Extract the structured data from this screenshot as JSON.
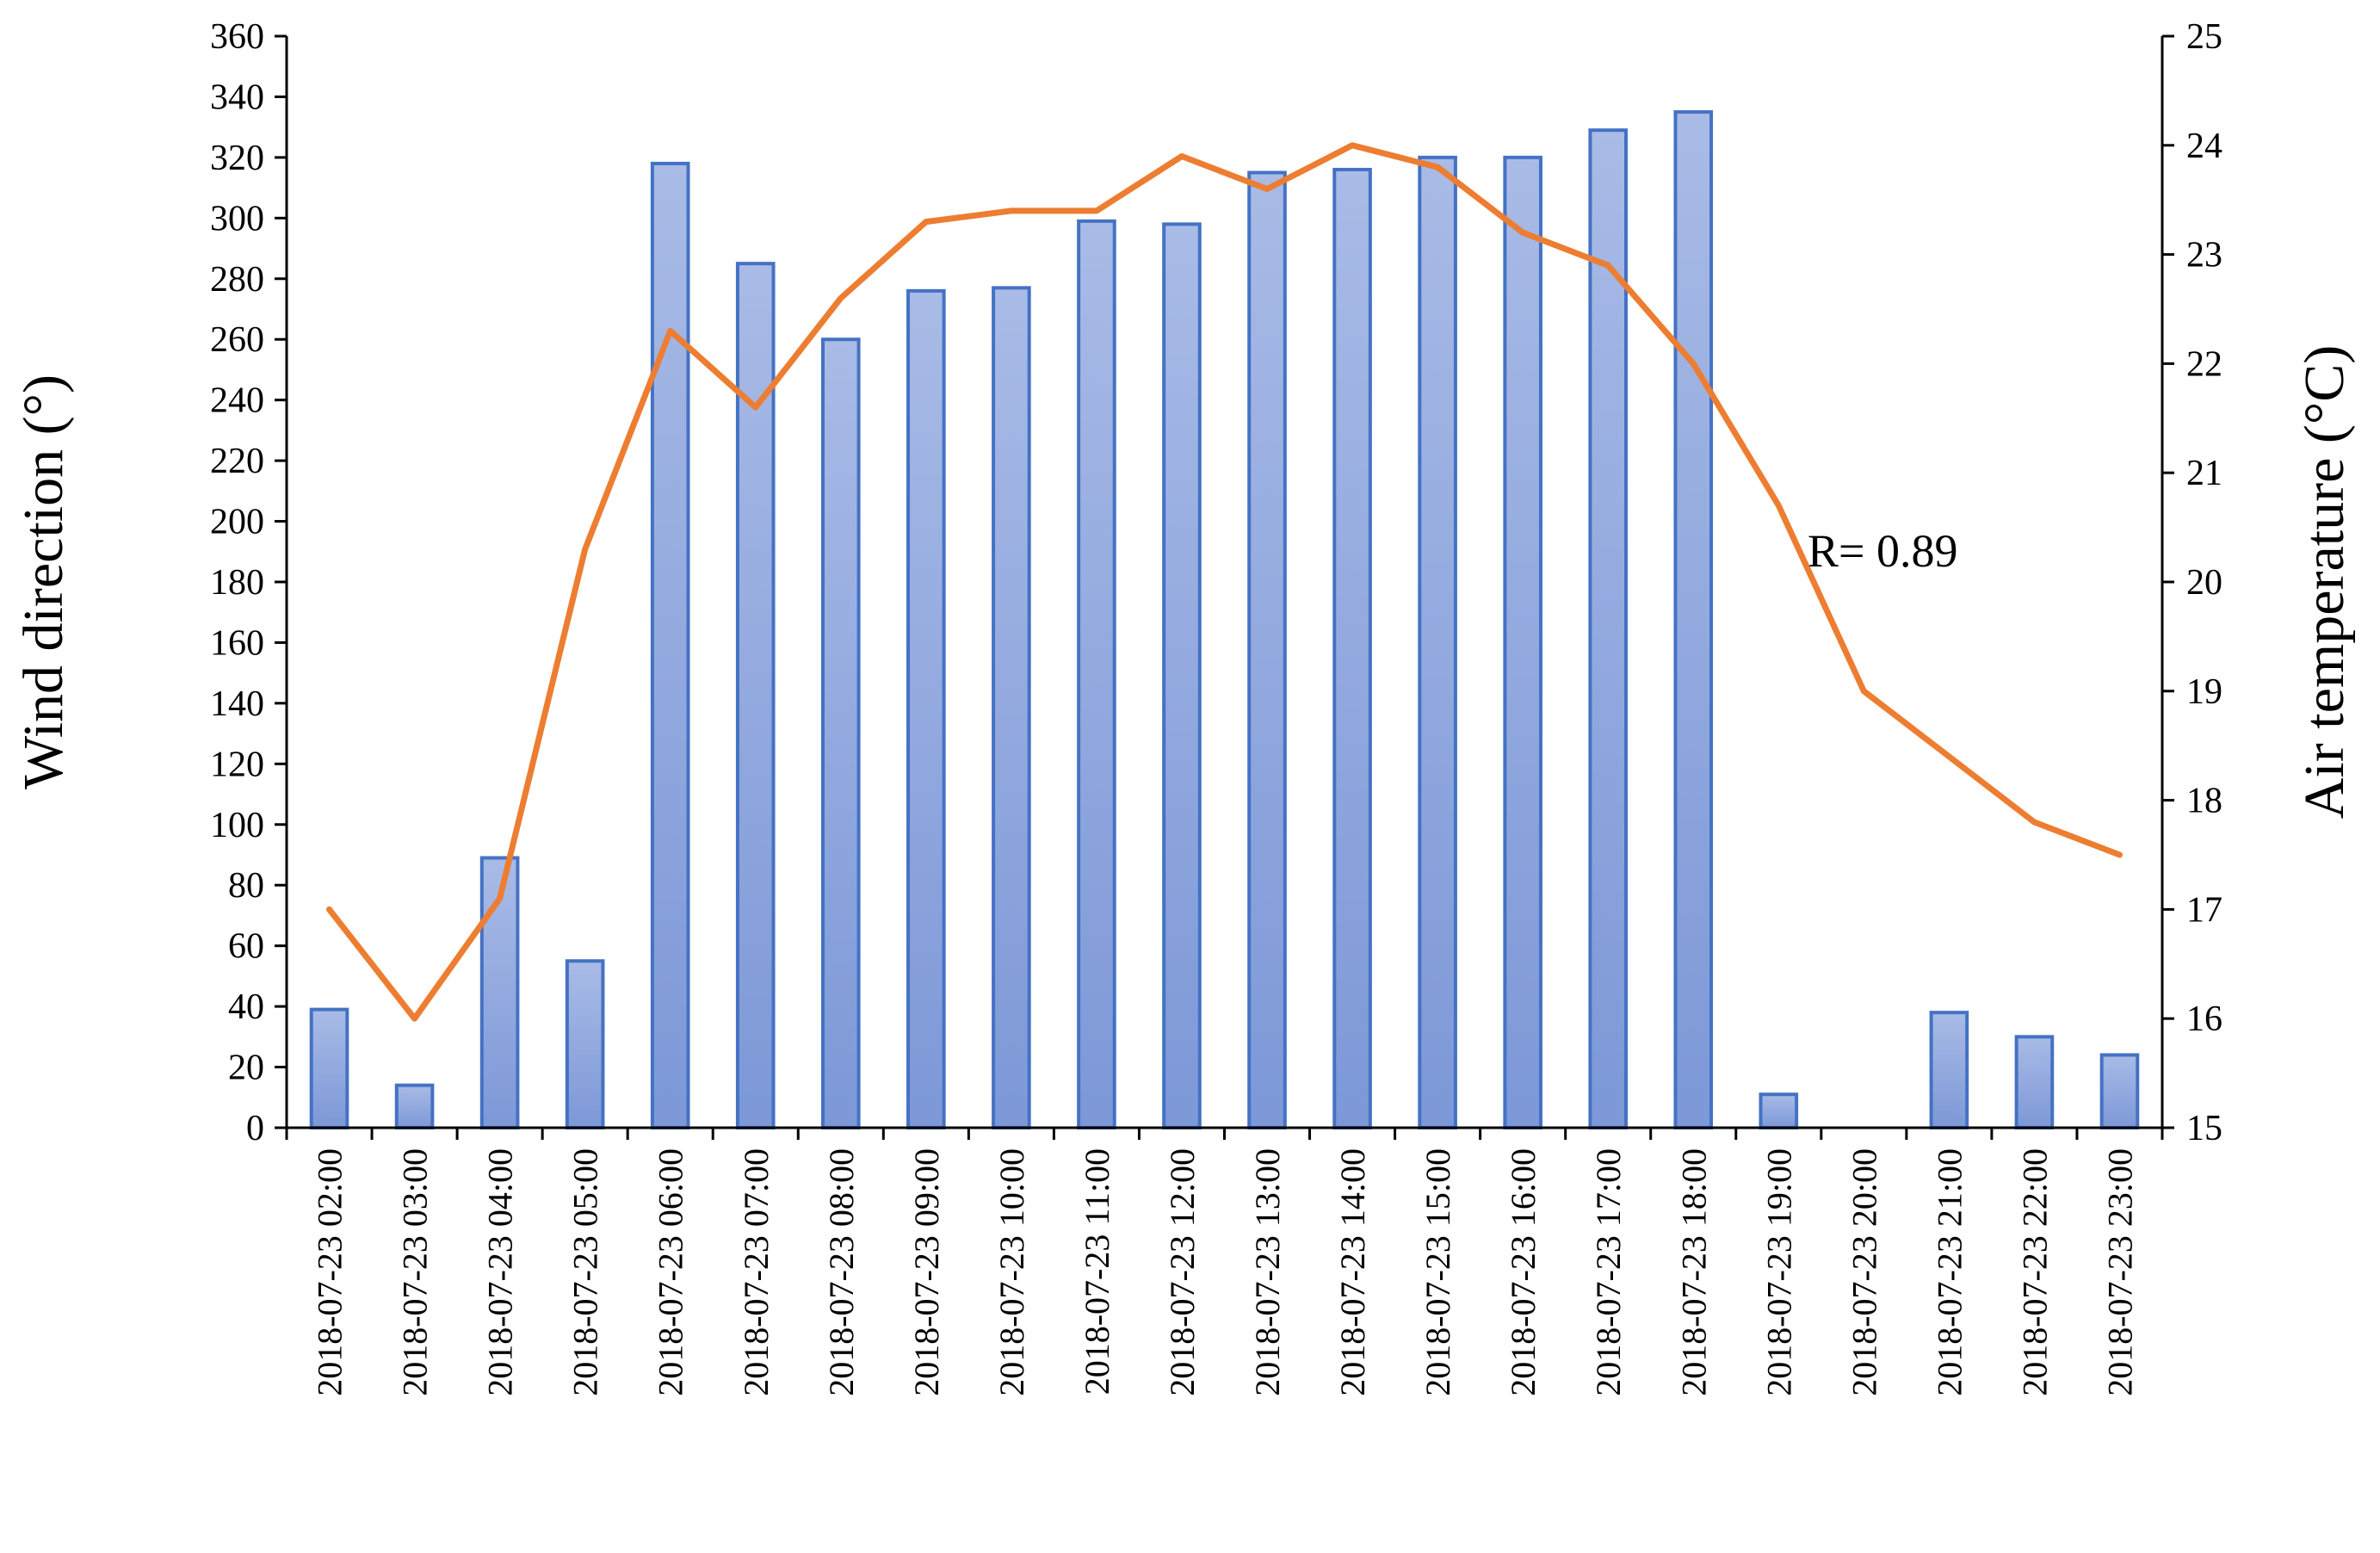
{
  "chart_data": {
    "type": "bar",
    "categories": [
      "2018-07-23  02:00",
      "2018-07-23  03:00",
      "2018-07-23  04:00",
      "2018-07-23 05:00",
      "2018-07-23  06:00",
      "2018-07-23  07:00",
      "2018-07-23  08:00",
      "2018-07-23  09:00",
      "2018-07-23  10:00",
      "2018-07-23  11:00",
      "2018-07-23  12:00",
      "2018-07-23  13:00",
      "2018-07-23  14:00",
      "2018-07-23  15:00",
      "2018-07-23  16:00",
      "2018-07-23  17:00",
      "2018-07-23  18:00",
      "2018-07-23  19:00",
      "2018-07-23  20:00",
      "2018-07-23  21:00",
      "2018-07-23  22:00",
      "2018-07-23  23:00"
    ],
    "series": [
      {
        "type": "bar",
        "axis": "left",
        "values": [
          39,
          14,
          89,
          55,
          318,
          285,
          260,
          276,
          277,
          299,
          298,
          315,
          316,
          320,
          320,
          329,
          335,
          11,
          0,
          38,
          30,
          24
        ]
      },
      {
        "type": "line",
        "axis": "right",
        "values": [
          17.0,
          16.0,
          17.1,
          20.3,
          22.3,
          21.6,
          22.6,
          23.3,
          23.4,
          23.4,
          23.9,
          23.6,
          24.0,
          23.8,
          23.2,
          22.9,
          22.0,
          20.7,
          19.0,
          18.4,
          17.8,
          17.5
        ]
      }
    ],
    "ylabel": "Wind direction (°)",
    "ylabel_right": "Air temperature (°C)",
    "ylim": [
      0,
      360
    ],
    "yticks": [
      0,
      20,
      40,
      60,
      80,
      100,
      120,
      140,
      160,
      180,
      200,
      220,
      240,
      260,
      280,
      300,
      320,
      340,
      360
    ],
    "ylim_right": [
      15,
      25
    ],
    "yticks_right": [
      15,
      16,
      17,
      18,
      19,
      20,
      21,
      22,
      23,
      24,
      25
    ],
    "annotation": "R= 0.89",
    "grid": false,
    "legend": "none",
    "colors": {
      "bar_fill_top": "#a9bbe6",
      "bar_fill_bottom": "#7d98d8",
      "bar_stroke": "#4472c4",
      "line": "#ed7d31",
      "axis": "#000000"
    }
  }
}
